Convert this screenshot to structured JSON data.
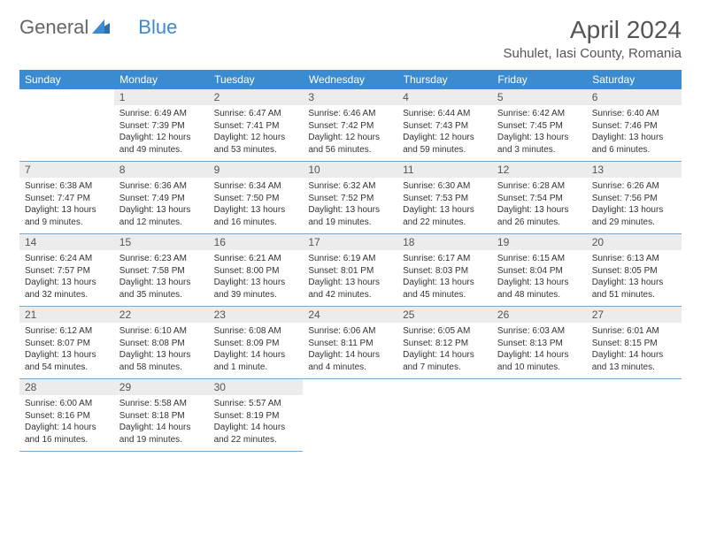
{
  "logo": {
    "general": "General",
    "blue": "Blue"
  },
  "title": "April 2024",
  "location": "Suhulet, Iasi County, Romania",
  "colors": {
    "header_bg": "#3b8bd0",
    "header_text": "#ffffff",
    "daynum_bg": "#ececec",
    "border": "#7aa8cc"
  },
  "weekdays": [
    "Sunday",
    "Monday",
    "Tuesday",
    "Wednesday",
    "Thursday",
    "Friday",
    "Saturday"
  ],
  "cells": [
    {
      "n": "",
      "sr": "",
      "ss": "",
      "dl": ""
    },
    {
      "n": "1",
      "sr": "Sunrise: 6:49 AM",
      "ss": "Sunset: 7:39 PM",
      "dl": "Daylight: 12 hours and 49 minutes."
    },
    {
      "n": "2",
      "sr": "Sunrise: 6:47 AM",
      "ss": "Sunset: 7:41 PM",
      "dl": "Daylight: 12 hours and 53 minutes."
    },
    {
      "n": "3",
      "sr": "Sunrise: 6:46 AM",
      "ss": "Sunset: 7:42 PM",
      "dl": "Daylight: 12 hours and 56 minutes."
    },
    {
      "n": "4",
      "sr": "Sunrise: 6:44 AM",
      "ss": "Sunset: 7:43 PM",
      "dl": "Daylight: 12 hours and 59 minutes."
    },
    {
      "n": "5",
      "sr": "Sunrise: 6:42 AM",
      "ss": "Sunset: 7:45 PM",
      "dl": "Daylight: 13 hours and 3 minutes."
    },
    {
      "n": "6",
      "sr": "Sunrise: 6:40 AM",
      "ss": "Sunset: 7:46 PM",
      "dl": "Daylight: 13 hours and 6 minutes."
    },
    {
      "n": "7",
      "sr": "Sunrise: 6:38 AM",
      "ss": "Sunset: 7:47 PM",
      "dl": "Daylight: 13 hours and 9 minutes."
    },
    {
      "n": "8",
      "sr": "Sunrise: 6:36 AM",
      "ss": "Sunset: 7:49 PM",
      "dl": "Daylight: 13 hours and 12 minutes."
    },
    {
      "n": "9",
      "sr": "Sunrise: 6:34 AM",
      "ss": "Sunset: 7:50 PM",
      "dl": "Daylight: 13 hours and 16 minutes."
    },
    {
      "n": "10",
      "sr": "Sunrise: 6:32 AM",
      "ss": "Sunset: 7:52 PM",
      "dl": "Daylight: 13 hours and 19 minutes."
    },
    {
      "n": "11",
      "sr": "Sunrise: 6:30 AM",
      "ss": "Sunset: 7:53 PM",
      "dl": "Daylight: 13 hours and 22 minutes."
    },
    {
      "n": "12",
      "sr": "Sunrise: 6:28 AM",
      "ss": "Sunset: 7:54 PM",
      "dl": "Daylight: 13 hours and 26 minutes."
    },
    {
      "n": "13",
      "sr": "Sunrise: 6:26 AM",
      "ss": "Sunset: 7:56 PM",
      "dl": "Daylight: 13 hours and 29 minutes."
    },
    {
      "n": "14",
      "sr": "Sunrise: 6:24 AM",
      "ss": "Sunset: 7:57 PM",
      "dl": "Daylight: 13 hours and 32 minutes."
    },
    {
      "n": "15",
      "sr": "Sunrise: 6:23 AM",
      "ss": "Sunset: 7:58 PM",
      "dl": "Daylight: 13 hours and 35 minutes."
    },
    {
      "n": "16",
      "sr": "Sunrise: 6:21 AM",
      "ss": "Sunset: 8:00 PM",
      "dl": "Daylight: 13 hours and 39 minutes."
    },
    {
      "n": "17",
      "sr": "Sunrise: 6:19 AM",
      "ss": "Sunset: 8:01 PM",
      "dl": "Daylight: 13 hours and 42 minutes."
    },
    {
      "n": "18",
      "sr": "Sunrise: 6:17 AM",
      "ss": "Sunset: 8:03 PM",
      "dl": "Daylight: 13 hours and 45 minutes."
    },
    {
      "n": "19",
      "sr": "Sunrise: 6:15 AM",
      "ss": "Sunset: 8:04 PM",
      "dl": "Daylight: 13 hours and 48 minutes."
    },
    {
      "n": "20",
      "sr": "Sunrise: 6:13 AM",
      "ss": "Sunset: 8:05 PM",
      "dl": "Daylight: 13 hours and 51 minutes."
    },
    {
      "n": "21",
      "sr": "Sunrise: 6:12 AM",
      "ss": "Sunset: 8:07 PM",
      "dl": "Daylight: 13 hours and 54 minutes."
    },
    {
      "n": "22",
      "sr": "Sunrise: 6:10 AM",
      "ss": "Sunset: 8:08 PM",
      "dl": "Daylight: 13 hours and 58 minutes."
    },
    {
      "n": "23",
      "sr": "Sunrise: 6:08 AM",
      "ss": "Sunset: 8:09 PM",
      "dl": "Daylight: 14 hours and 1 minute."
    },
    {
      "n": "24",
      "sr": "Sunrise: 6:06 AM",
      "ss": "Sunset: 8:11 PM",
      "dl": "Daylight: 14 hours and 4 minutes."
    },
    {
      "n": "25",
      "sr": "Sunrise: 6:05 AM",
      "ss": "Sunset: 8:12 PM",
      "dl": "Daylight: 14 hours and 7 minutes."
    },
    {
      "n": "26",
      "sr": "Sunrise: 6:03 AM",
      "ss": "Sunset: 8:13 PM",
      "dl": "Daylight: 14 hours and 10 minutes."
    },
    {
      "n": "27",
      "sr": "Sunrise: 6:01 AM",
      "ss": "Sunset: 8:15 PM",
      "dl": "Daylight: 14 hours and 13 minutes."
    },
    {
      "n": "28",
      "sr": "Sunrise: 6:00 AM",
      "ss": "Sunset: 8:16 PM",
      "dl": "Daylight: 14 hours and 16 minutes."
    },
    {
      "n": "29",
      "sr": "Sunrise: 5:58 AM",
      "ss": "Sunset: 8:18 PM",
      "dl": "Daylight: 14 hours and 19 minutes."
    },
    {
      "n": "30",
      "sr": "Sunrise: 5:57 AM",
      "ss": "Sunset: 8:19 PM",
      "dl": "Daylight: 14 hours and 22 minutes."
    },
    {
      "n": "",
      "sr": "",
      "ss": "",
      "dl": ""
    },
    {
      "n": "",
      "sr": "",
      "ss": "",
      "dl": ""
    },
    {
      "n": "",
      "sr": "",
      "ss": "",
      "dl": ""
    },
    {
      "n": "",
      "sr": "",
      "ss": "",
      "dl": ""
    }
  ]
}
